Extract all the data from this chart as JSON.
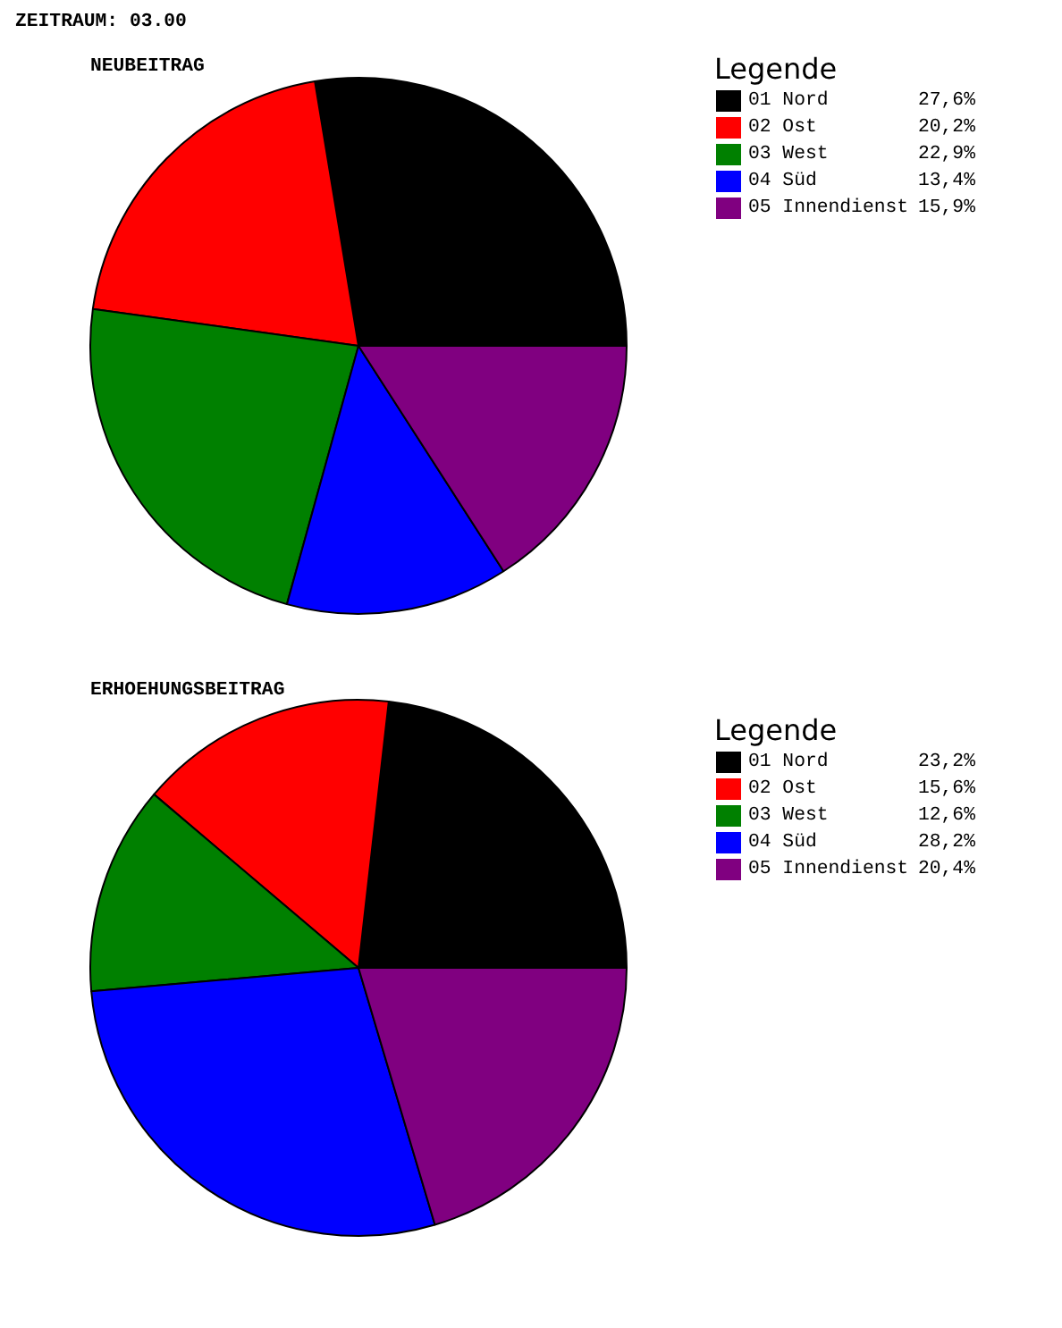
{
  "chart_data": [
    {
      "type": "pie",
      "title": "ZEITRAUM: 03.00",
      "subtitle": "NEUBEITRAG",
      "legend_title": "Legende",
      "legend": "right",
      "categories": [
        "01 Nord",
        "02 Ost",
        "03 West",
        "04 Süd",
        "05 Innendienst"
      ],
      "values": [
        27.6,
        20.2,
        22.9,
        13.4,
        15.9
      ],
      "value_labels": [
        "27,6%",
        "20,2%",
        "22,9%",
        "13,4%",
        "15,9%"
      ],
      "colors": [
        "#000000",
        "#ff0000",
        "#008000",
        "#0000ff",
        "#800080"
      ]
    },
    {
      "type": "pie",
      "subtitle": "ERHOEHUNGSBEITRAG",
      "legend_title": "Legende",
      "legend": "right",
      "categories": [
        "01 Nord",
        "02 Ost",
        "03 West",
        "04 Süd",
        "05 Innendienst"
      ],
      "values": [
        23.2,
        15.6,
        12.6,
        28.2,
        20.4
      ],
      "value_labels": [
        "23,2%",
        "15,6%",
        "12,6%",
        "28,2%",
        "20,4%"
      ],
      "colors": [
        "#000000",
        "#ff0000",
        "#008000",
        "#0000ff",
        "#800080"
      ]
    }
  ]
}
